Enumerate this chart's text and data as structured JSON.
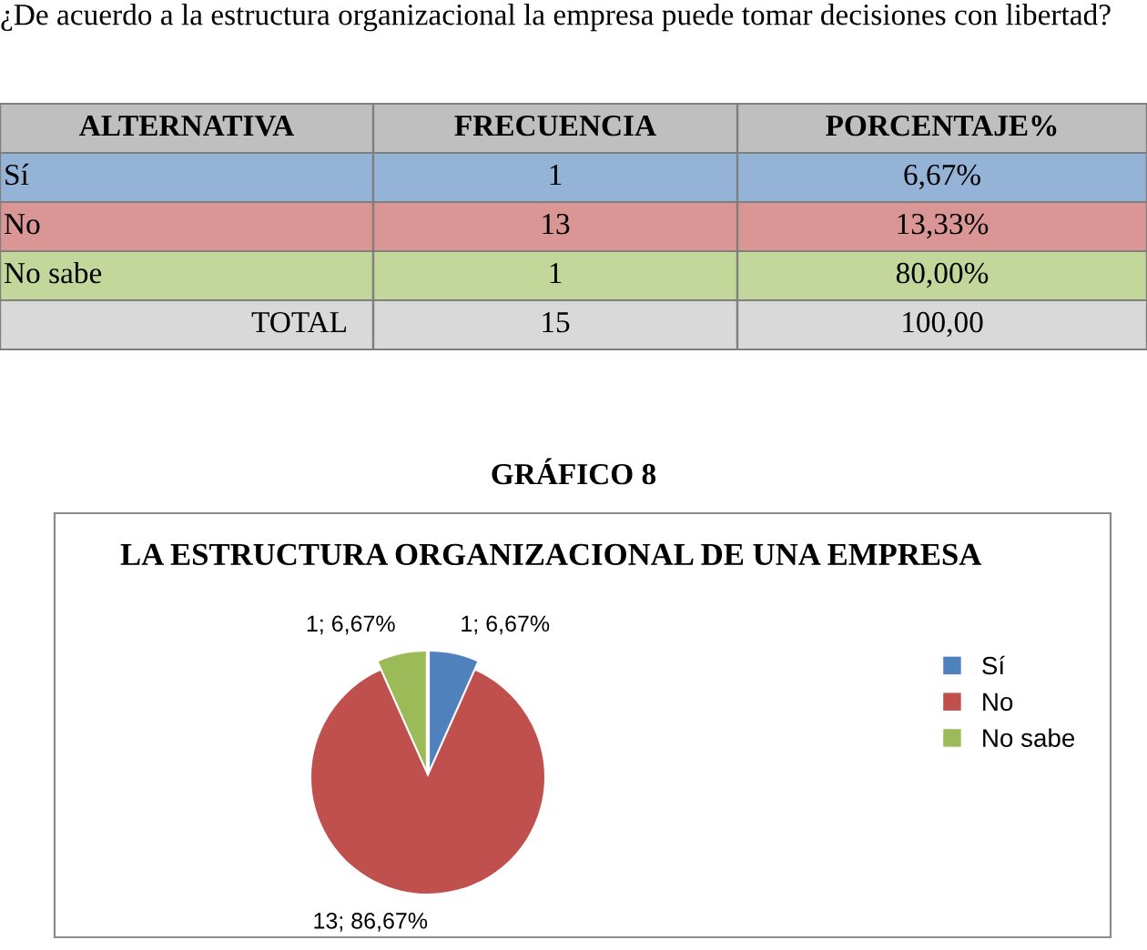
{
  "chart_data": [
    {
      "type": "other",
      "title": "¿De acuerdo a la estructura organizacional la empresa puede tomar decisiones con libertad?",
      "annotations": [
        "ALTERNATIVA",
        "FRECUENCIA",
        "PORCENTAJE%",
        "Sí",
        "1",
        "6,67%",
        "No",
        "13",
        "13,33%",
        "No sabe",
        "1",
        "80,00%",
        "TOTAL",
        "15",
        "100,00",
        "GRÁFICO 8"
      ],
      "colors": [
        "#bfbfbf",
        "#95b3d7",
        "#da9694",
        "#c4d79b",
        "#d9d9d9"
      ]
    },
    {
      "type": "pie",
      "title": "LA ESTRUCTURA ORGANIZACIONAL DE UNA EMPRESA",
      "categories": [
        "Sí",
        "No",
        "No sabe"
      ],
      "values": [
        6.67,
        86.67,
        6.67
      ],
      "colors": [
        "#4f81bd",
        "#c0504d",
        "#9bbb59"
      ],
      "value_labels": [
        "1; 6,67%",
        "13; 86,67%",
        "1; 6,67%"
      ],
      "legend": "right"
    }
  ]
}
